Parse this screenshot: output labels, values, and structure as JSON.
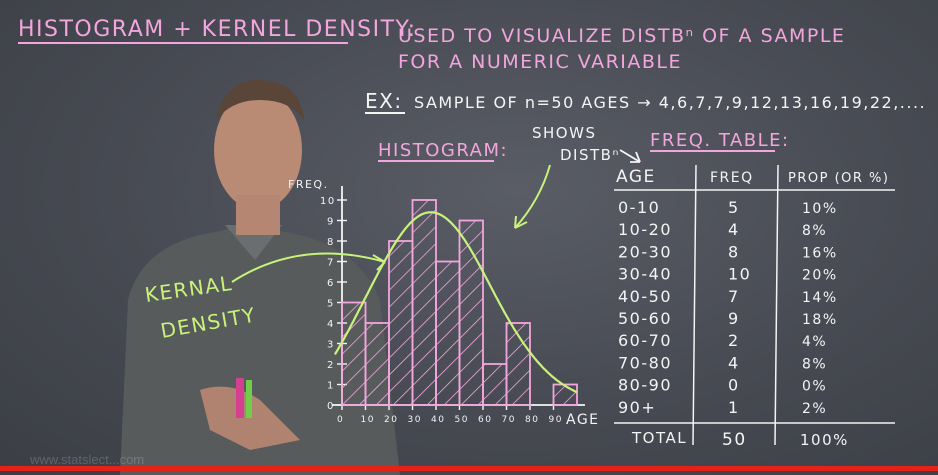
{
  "title": "HISTOGRAM + KERNEL DENSITY:",
  "subtitle_line1": "USED TO VISUALIZE DISTBⁿ OF A SAMPLE",
  "subtitle_line2": "FOR A NUMERIC VARIABLE",
  "example_label": "EX:",
  "example_text": "SAMPLE OF n=50 AGES → 4,6,7,7,9,12,13,16,19,22,....",
  "histogram_label": "HISTOGRAM:",
  "shows_label_1": "SHOWS",
  "shows_label_2": "DISTBⁿ",
  "kernel_label_1": "KERNAL",
  "kernel_label_2": "DENSITY",
  "freq_axis_label": "FREQ.",
  "x_axis_label": "AGE",
  "y_ticks": [
    "0",
    "1",
    "2",
    "3",
    "4",
    "5",
    "6",
    "7",
    "8",
    "9",
    "10"
  ],
  "x_ticks": [
    "0",
    "10",
    "20",
    "30",
    "40",
    "50",
    "60",
    "70",
    "80",
    "90"
  ],
  "freq_table": {
    "title": "FREQ. TABLE:",
    "headers": [
      "AGE",
      "FREQ",
      "PROP (OR %)"
    ],
    "rows": [
      [
        "0-10",
        "5",
        "10%"
      ],
      [
        "10-20",
        "4",
        "8%"
      ],
      [
        "20-30",
        "8",
        "16%"
      ],
      [
        "30-40",
        "10",
        "20%"
      ],
      [
        "40-50",
        "7",
        "14%"
      ],
      [
        "50-60",
        "9",
        "18%"
      ],
      [
        "60-70",
        "2",
        "4%"
      ],
      [
        "70-80",
        "4",
        "8%"
      ],
      [
        "80-90",
        "0",
        "0%"
      ],
      [
        "90+",
        "1",
        "2%"
      ]
    ],
    "total_row": [
      "TOTAL",
      "50",
      "100%"
    ]
  },
  "colors": {
    "pink": "#f3a6dd",
    "white": "#f4f4f4",
    "green": "#c9f27a",
    "board": "#4a4d55"
  },
  "watermark": "www.statslect...com",
  "video_progress": 1.0
}
